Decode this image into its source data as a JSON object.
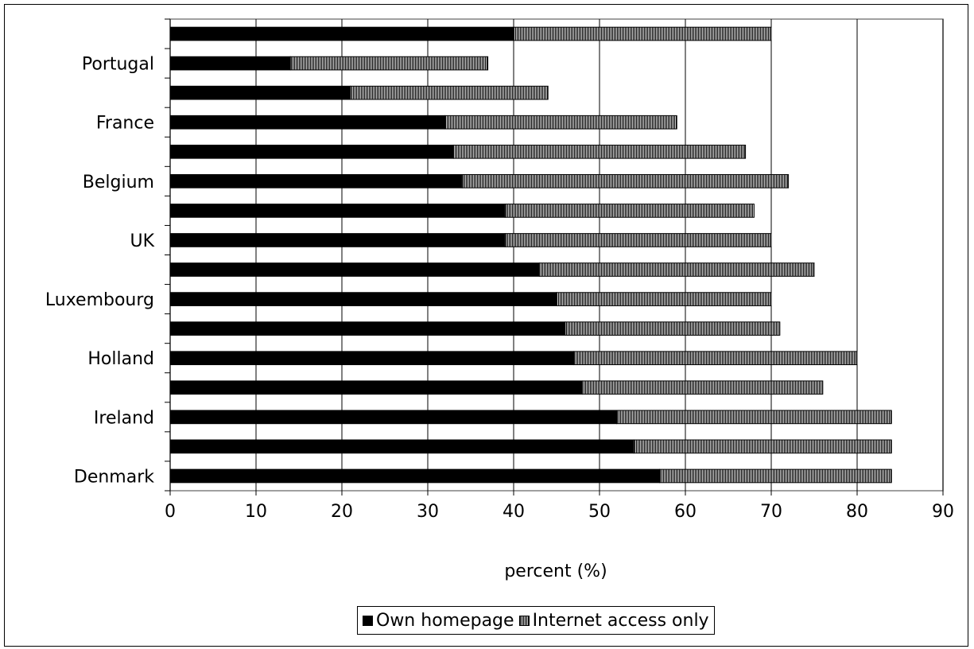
{
  "chart_data": {
    "type": "bar",
    "orientation": "horizontal",
    "stacked": true,
    "title": "",
    "xlabel": "percent (%)",
    "ylabel": "",
    "xlim": [
      0,
      90
    ],
    "x_ticks": [
      0,
      10,
      20,
      30,
      40,
      50,
      60,
      70,
      80,
      90
    ],
    "grid": "vertical",
    "legend_position": "bottom",
    "category_labels": [
      "Denmark",
      "",
      "Ireland",
      "",
      "Holland",
      "",
      "Luxembourg",
      "",
      "UK",
      "",
      "Belgium",
      "",
      "France",
      "",
      "Portugal",
      ""
    ],
    "series": [
      {
        "name": "Own homepage",
        "color": "#000000",
        "values": [
          57,
          54,
          52,
          48,
          47,
          46,
          45,
          43,
          39,
          39,
          34,
          33,
          32,
          21,
          14,
          40
        ]
      },
      {
        "name": "Internet access only",
        "color": "#d8d8d8",
        "pattern": "vertical-hatch",
        "values": [
          27,
          30,
          32,
          28,
          33,
          25,
          25,
          32,
          31,
          29,
          38,
          34,
          27,
          23,
          23,
          30
        ]
      }
    ]
  }
}
